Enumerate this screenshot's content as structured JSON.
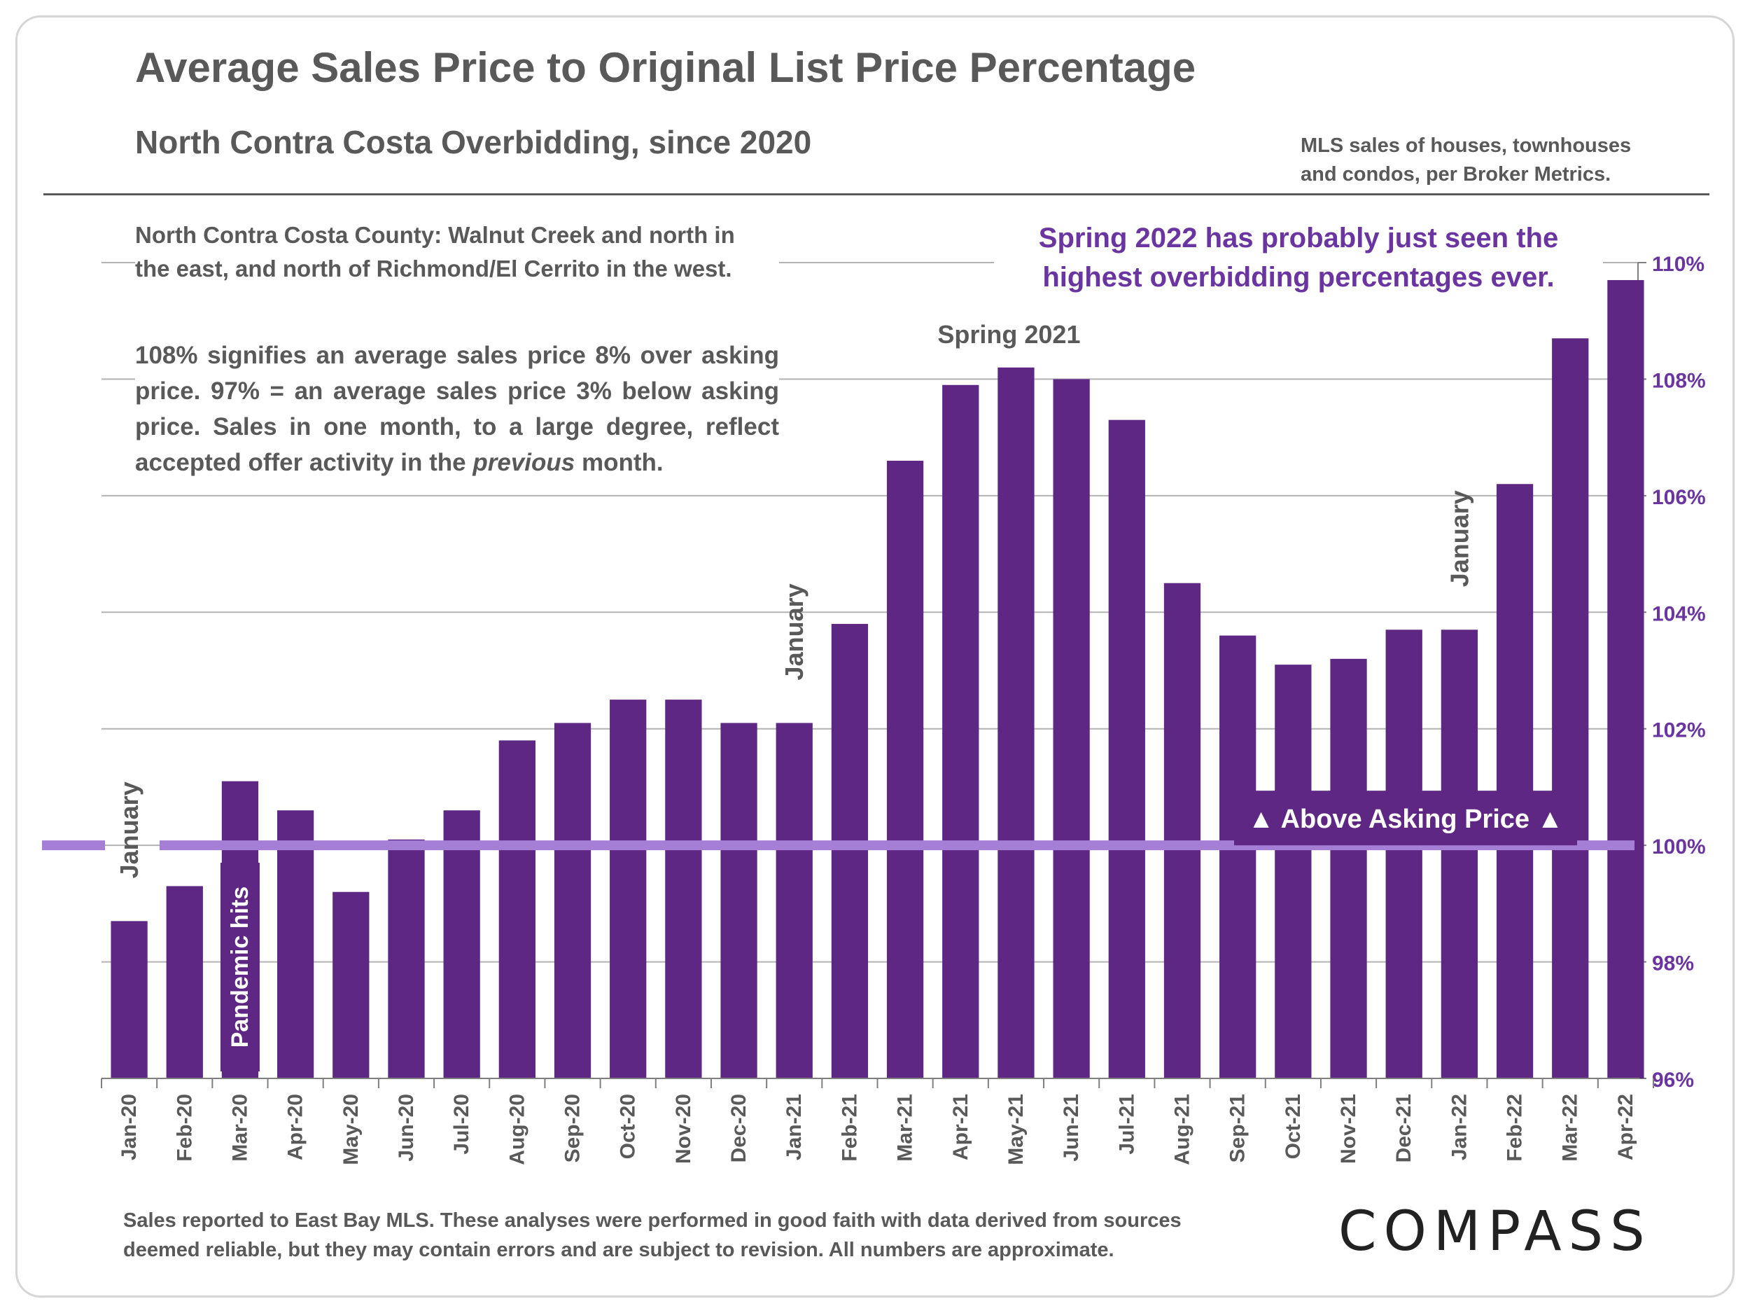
{
  "title": "Average Sales Price to Original List Price Percentage",
  "subtitle": "North Contra Costa Overbidding, since 2020",
  "source_note": [
    "MLS sales of houses, townhouses",
    "and condos, per Broker Metrics."
  ],
  "intro_text": [
    "North Contra Costa County: Walnut Creek and north in",
    "the east, and north of Richmond/El Cerrito in the west."
  ],
  "note": {
    "part1": "108% signifies an average sales price 8% over asking price. 97% = an average sales price 3% below asking price. Sales in one month, to a large degree, reflect accepted offer activity in the ",
    "emphasis": "previous",
    "part2": " month."
  },
  "callout": [
    "Spring 2022 has probably just seen the",
    "highest overbidding percentages ever."
  ],
  "footer": [
    "Sales reported to East Bay MLS. These analyses were performed in good faith with data derived from sources",
    "deemed reliable, but they may contain errors and are subject to revision. All numbers are approximate."
  ],
  "logo": "COMPASS",
  "colors": {
    "bar": "#5e2784",
    "reference_line": "#a57fd6",
    "callout_text": "#6a35a0",
    "text": "#595959"
  },
  "chart_data": {
    "type": "bar",
    "categories": [
      "Jan-20",
      "Feb-20",
      "Mar-20",
      "Apr-20",
      "May-20",
      "Jun-20",
      "Jul-20",
      "Aug-20",
      "Sep-20",
      "Oct-20",
      "Nov-20",
      "Dec-20",
      "Jan-21",
      "Feb-21",
      "Mar-21",
      "Apr-21",
      "May-21",
      "Jun-21",
      "Jul-21",
      "Aug-21",
      "Sep-21",
      "Oct-21",
      "Nov-21",
      "Dec-21",
      "Jan-22",
      "Feb-22",
      "Mar-22",
      "Apr-22"
    ],
    "values": [
      98.7,
      99.3,
      101.1,
      100.6,
      99.2,
      100.1,
      100.6,
      101.8,
      102.1,
      102.5,
      102.5,
      102.1,
      102.1,
      103.8,
      106.6,
      107.9,
      108.2,
      108.0,
      107.3,
      104.5,
      103.6,
      103.1,
      103.2,
      103.7,
      103.7,
      106.2,
      108.7,
      109.7
    ],
    "ylim": [
      96,
      110
    ],
    "yticks": [
      96,
      98,
      100,
      102,
      104,
      106,
      108,
      110
    ],
    "ytick_labels": [
      "96%",
      "98%",
      "100%",
      "102%",
      "104%",
      "106%",
      "108%",
      "110%"
    ],
    "y_axis_side": "right",
    "grid": true,
    "reference_line": {
      "value": 100,
      "label": "▲ Above Asking Price ▲"
    },
    "annotations": [
      {
        "text": "January",
        "category": "Jan-20",
        "orientation": "vertical"
      },
      {
        "text": "Pandemic hits",
        "category": "Mar-20",
        "orientation": "vertical"
      },
      {
        "text": "January",
        "category": "Jan-21",
        "orientation": "vertical"
      },
      {
        "text": "Spring 2021",
        "category": "May-21",
        "orientation": "horizontal"
      },
      {
        "text": "January",
        "category": "Jan-22",
        "orientation": "vertical"
      }
    ]
  }
}
